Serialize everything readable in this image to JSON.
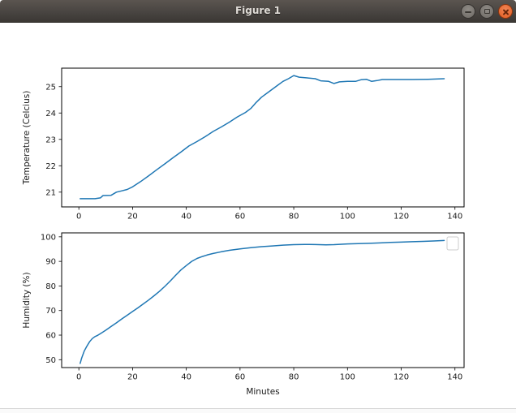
{
  "window": {
    "title": "Figure 1",
    "buttons": {
      "minimize": "minimize",
      "maximize": "maximize",
      "close": "close"
    }
  },
  "colors": {
    "titlebar": "#474340",
    "close_button_orange": "#e25e22",
    "line_blue": "#1f77b4",
    "axis_black": "#000000",
    "legend_border_gray": "#cccccc"
  },
  "chart_data": [
    {
      "type": "line",
      "name": "temperature-subplot",
      "title": "",
      "xlabel": "",
      "ylabel": "Temperature (Celcius)",
      "xlim": [
        -6.4,
        143.4
      ],
      "ylim": [
        20.44,
        25.7
      ],
      "xticks": [
        0,
        20,
        40,
        60,
        80,
        100,
        120,
        140
      ],
      "yticks": [
        21,
        22,
        23,
        24,
        25
      ],
      "grid": false,
      "legend": "none",
      "line_color": "#1f77b4",
      "points": [
        [
          0.5,
          20.75
        ],
        [
          3,
          20.75
        ],
        [
          6,
          20.75
        ],
        [
          8,
          20.78
        ],
        [
          9,
          20.87
        ],
        [
          12,
          20.88
        ],
        [
          14,
          21.0
        ],
        [
          16,
          21.05
        ],
        [
          18,
          21.1
        ],
        [
          20,
          21.2
        ],
        [
          23,
          21.4
        ],
        [
          26,
          21.62
        ],
        [
          29,
          21.85
        ],
        [
          32,
          22.07
        ],
        [
          35,
          22.3
        ],
        [
          38,
          22.52
        ],
        [
          41,
          22.75
        ],
        [
          44,
          22.92
        ],
        [
          47,
          23.1
        ],
        [
          50,
          23.3
        ],
        [
          53,
          23.47
        ],
        [
          56,
          23.65
        ],
        [
          59,
          23.85
        ],
        [
          62,
          24.02
        ],
        [
          64,
          24.17
        ],
        [
          66,
          24.4
        ],
        [
          68,
          24.6
        ],
        [
          70,
          24.75
        ],
        [
          72,
          24.9
        ],
        [
          74,
          25.05
        ],
        [
          76,
          25.2
        ],
        [
          78,
          25.3
        ],
        [
          80,
          25.42
        ],
        [
          82,
          25.36
        ],
        [
          85,
          25.33
        ],
        [
          88,
          25.3
        ],
        [
          90,
          25.22
        ],
        [
          93,
          25.2
        ],
        [
          95,
          25.12
        ],
        [
          97,
          25.18
        ],
        [
          100,
          25.2
        ],
        [
          103,
          25.2
        ],
        [
          105,
          25.26
        ],
        [
          107,
          25.28
        ],
        [
          109,
          25.2
        ],
        [
          111,
          25.23
        ],
        [
          113,
          25.27
        ],
        [
          118,
          25.27
        ],
        [
          124,
          25.27
        ],
        [
          130,
          25.28
        ],
        [
          136,
          25.3
        ]
      ]
    },
    {
      "type": "line",
      "name": "humidity-subplot",
      "title": "",
      "xlabel": "Minutes",
      "ylabel": "Humidity (%)",
      "xlim": [
        -6.4,
        143.4
      ],
      "ylim": [
        46.8,
        101.6
      ],
      "xticks": [
        0,
        20,
        40,
        60,
        80,
        100,
        120,
        140
      ],
      "yticks": [
        50,
        60,
        70,
        80,
        90,
        100
      ],
      "grid": false,
      "legend": "empty-box-upper-right",
      "line_color": "#1f77b4",
      "points": [
        [
          0.5,
          48.5
        ],
        [
          1,
          50.5
        ],
        [
          2,
          53.5
        ],
        [
          3,
          55.5
        ],
        [
          4,
          57.3
        ],
        [
          5,
          58.6
        ],
        [
          6,
          59.4
        ],
        [
          7,
          59.9
        ],
        [
          8,
          60.6
        ],
        [
          10,
          62.0
        ],
        [
          12,
          63.5
        ],
        [
          14,
          65.0
        ],
        [
          16,
          66.6
        ],
        [
          18,
          68.1
        ],
        [
          20,
          69.6
        ],
        [
          22,
          71.1
        ],
        [
          24,
          72.7
        ],
        [
          26,
          74.3
        ],
        [
          28,
          76.0
        ],
        [
          30,
          77.8
        ],
        [
          32,
          79.8
        ],
        [
          34,
          82.0
        ],
        [
          36,
          84.3
        ],
        [
          38,
          86.5
        ],
        [
          40,
          88.3
        ],
        [
          42,
          90.0
        ],
        [
          44,
          91.2
        ],
        [
          46,
          92.0
        ],
        [
          48,
          92.7
        ],
        [
          50,
          93.2
        ],
        [
          53,
          93.9
        ],
        [
          56,
          94.5
        ],
        [
          60,
          95.1
        ],
        [
          64,
          95.6
        ],
        [
          68,
          96.0
        ],
        [
          72,
          96.3
        ],
        [
          76,
          96.6
        ],
        [
          80,
          96.8
        ],
        [
          84,
          96.9
        ],
        [
          88,
          96.85
        ],
        [
          92,
          96.7
        ],
        [
          95,
          96.8
        ],
        [
          100,
          97.1
        ],
        [
          104,
          97.2
        ],
        [
          108,
          97.35
        ],
        [
          112,
          97.5
        ],
        [
          116,
          97.7
        ],
        [
          120,
          97.85
        ],
        [
          124,
          98.0
        ],
        [
          128,
          98.15
        ],
        [
          132,
          98.3
        ],
        [
          136,
          98.5
        ]
      ]
    }
  ]
}
